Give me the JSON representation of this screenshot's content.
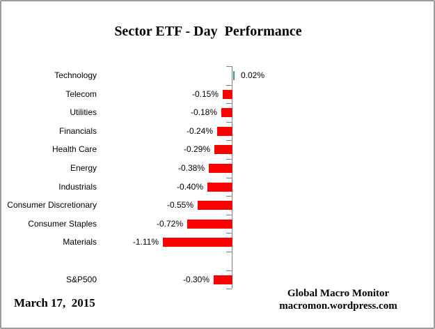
{
  "chart_data": {
    "type": "bar",
    "orientation": "horizontal",
    "title": "Sector ETF - Day  Performance",
    "value_unit": "%",
    "grid": false,
    "legend": false,
    "categories": [
      "Technology",
      "Telecom",
      "Utilities",
      "Financials",
      "Health Care",
      "Energy",
      "Industrials",
      "Consumer Discretionary",
      "Consumer Staples",
      "Materials",
      "",
      "S&P500"
    ],
    "values": [
      0.02,
      -0.15,
      -0.18,
      -0.24,
      -0.29,
      -0.38,
      -0.4,
      -0.55,
      -0.72,
      -1.11,
      null,
      -0.3
    ],
    "value_labels": [
      "0.02%",
      "-0.15%",
      "-0.18%",
      "-0.24%",
      "-0.29%",
      "-0.38%",
      "-0.40%",
      "-0.55%",
      "-0.72%",
      "-1.11%",
      "",
      "-0.30%"
    ],
    "colors": {
      "positive_bar": "#2da05f",
      "negative_bar": "#ff0000",
      "axis": "#808080",
      "text": "#000000",
      "border": "#9b9b9b"
    }
  },
  "footer": {
    "date": "March 17,  2015",
    "credit_line1": "Global Macro Monitor",
    "credit_line2": "macromon.wordpress.com"
  }
}
